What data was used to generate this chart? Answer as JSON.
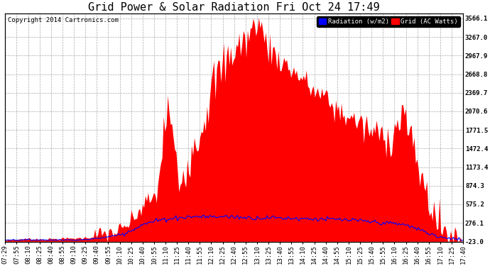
{
  "title": "Grid Power & Solar Radiation Fri Oct 24 17:49",
  "copyright": "Copyright 2014 Cartronics.com",
  "legend_labels": [
    "Radiation (w/m2)",
    "Grid (AC Watts)"
  ],
  "y_ticks": [
    -23.0,
    276.1,
    575.2,
    874.3,
    1173.4,
    1472.4,
    1771.5,
    2070.6,
    2369.7,
    2668.8,
    2967.9,
    3267.0,
    3566.1
  ],
  "y_min": -23.0,
  "y_max": 3566.1,
  "bg_color": "#ffffff",
  "grid_color": "#aaaaaa",
  "plot_bg_color": "#ffffff",
  "title_fontsize": 11,
  "copyright_fontsize": 6.5,
  "tick_label_fontsize": 6.5,
  "x_labels": [
    "07:29",
    "07:55",
    "08:10",
    "08:25",
    "08:40",
    "08:55",
    "09:10",
    "09:25",
    "09:40",
    "09:55",
    "10:10",
    "10:25",
    "10:40",
    "10:55",
    "11:10",
    "11:25",
    "11:40",
    "11:55",
    "12:10",
    "12:25",
    "12:40",
    "12:55",
    "13:10",
    "13:25",
    "13:40",
    "13:55",
    "14:10",
    "14:25",
    "14:40",
    "14:55",
    "15:10",
    "15:25",
    "15:40",
    "15:55",
    "16:10",
    "16:25",
    "16:40",
    "16:55",
    "17:10",
    "17:25",
    "17:40"
  ]
}
